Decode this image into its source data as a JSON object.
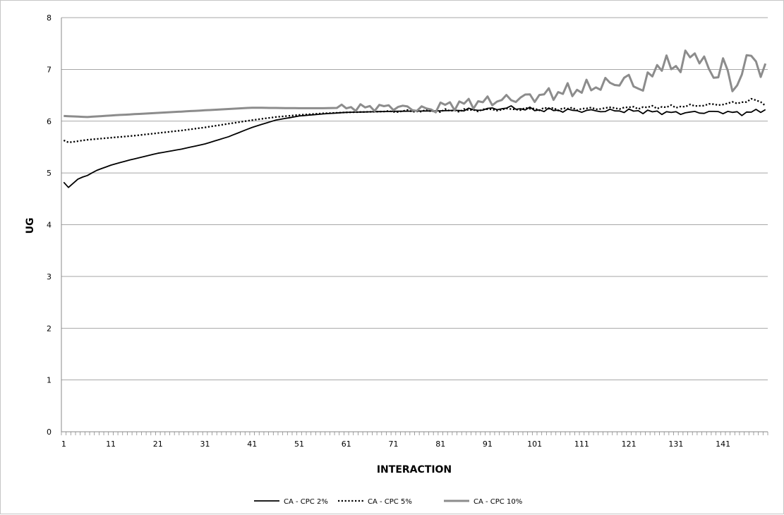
{
  "chart_data": {
    "type": "line",
    "title": "",
    "xlabel": "INTERACTION",
    "ylabel": "UG",
    "ylim": [
      0,
      8
    ],
    "yticks": [
      "0",
      "1",
      "2",
      "3",
      "4",
      "5",
      "6",
      "7",
      "8"
    ],
    "xlim": [
      1,
      150
    ],
    "xticks": [
      "1",
      "11",
      "21",
      "31",
      "41",
      "51",
      "61",
      "71",
      "81",
      "91",
      "101",
      "111",
      "121",
      "131",
      "141"
    ],
    "grid": true,
    "legend_position": "bottom",
    "series": [
      {
        "name": "CA - CPC 2%",
        "color": "#000000",
        "style": "solid",
        "knots": [
          [
            1,
            4.82
          ],
          [
            2,
            4.72
          ],
          [
            3,
            4.8
          ],
          [
            4,
            4.88
          ],
          [
            5,
            4.92
          ],
          [
            6,
            4.95
          ],
          [
            8,
            5.05
          ],
          [
            11,
            5.15
          ],
          [
            15,
            5.25
          ],
          [
            21,
            5.38
          ],
          [
            26,
            5.46
          ],
          [
            31,
            5.56
          ],
          [
            36,
            5.7
          ],
          [
            41,
            5.88
          ],
          [
            46,
            6.02
          ],
          [
            51,
            6.1
          ],
          [
            56,
            6.14
          ],
          [
            61,
            6.17
          ],
          [
            71,
            6.19
          ],
          [
            81,
            6.2
          ],
          [
            91,
            6.23
          ],
          [
            96,
            6.26
          ],
          [
            101,
            6.22
          ],
          [
            111,
            6.2
          ],
          [
            121,
            6.2
          ],
          [
            131,
            6.16
          ],
          [
            141,
            6.18
          ],
          [
            145,
            6.15
          ],
          [
            150,
            6.22
          ]
        ],
        "noise_from": 85,
        "noise_amp": 0.045
      },
      {
        "name": "CA - CPC 5%",
        "color": "#000000",
        "style": "dotted",
        "knots": [
          [
            1,
            5.63
          ],
          [
            2,
            5.59
          ],
          [
            3,
            5.6
          ],
          [
            6,
            5.64
          ],
          [
            11,
            5.68
          ],
          [
            16,
            5.72
          ],
          [
            21,
            5.77
          ],
          [
            26,
            5.82
          ],
          [
            31,
            5.88
          ],
          [
            36,
            5.95
          ],
          [
            41,
            6.02
          ],
          [
            46,
            6.08
          ],
          [
            51,
            6.12
          ],
          [
            56,
            6.15
          ],
          [
            61,
            6.17
          ],
          [
            71,
            6.19
          ],
          [
            81,
            6.2
          ],
          [
            91,
            6.22
          ],
          [
            101,
            6.24
          ],
          [
            111,
            6.24
          ],
          [
            121,
            6.26
          ],
          [
            131,
            6.28
          ],
          [
            141,
            6.33
          ],
          [
            146,
            6.38
          ],
          [
            148,
            6.42
          ],
          [
            150,
            6.32
          ]
        ],
        "noise_from": 70,
        "noise_amp": 0.035
      },
      {
        "name": "CA - CPC 10%",
        "color": "#8c8c8c",
        "style": "solid",
        "knots": [
          [
            1,
            6.1
          ],
          [
            6,
            6.08
          ],
          [
            11,
            6.11
          ],
          [
            21,
            6.16
          ],
          [
            31,
            6.21
          ],
          [
            41,
            6.26
          ],
          [
            51,
            6.25
          ],
          [
            56,
            6.25
          ],
          [
            61,
            6.26
          ],
          [
            71,
            6.28
          ],
          [
            79,
            6.22
          ],
          [
            81,
            6.3
          ],
          [
            91,
            6.38
          ],
          [
            101,
            6.48
          ],
          [
            111,
            6.62
          ],
          [
            121,
            6.8
          ],
          [
            124,
            6.62
          ],
          [
            127,
            7.1
          ],
          [
            131,
            7.05
          ],
          [
            134,
            7.25
          ],
          [
            136,
            7.3
          ],
          [
            139,
            6.8
          ],
          [
            141,
            7.2
          ],
          [
            143,
            6.55
          ],
          [
            145,
            7.0
          ],
          [
            147,
            7.25
          ],
          [
            150,
            6.95
          ]
        ],
        "noise_from": 60,
        "noise_amp": 0.07,
        "noise_growth": 0.28
      }
    ]
  }
}
